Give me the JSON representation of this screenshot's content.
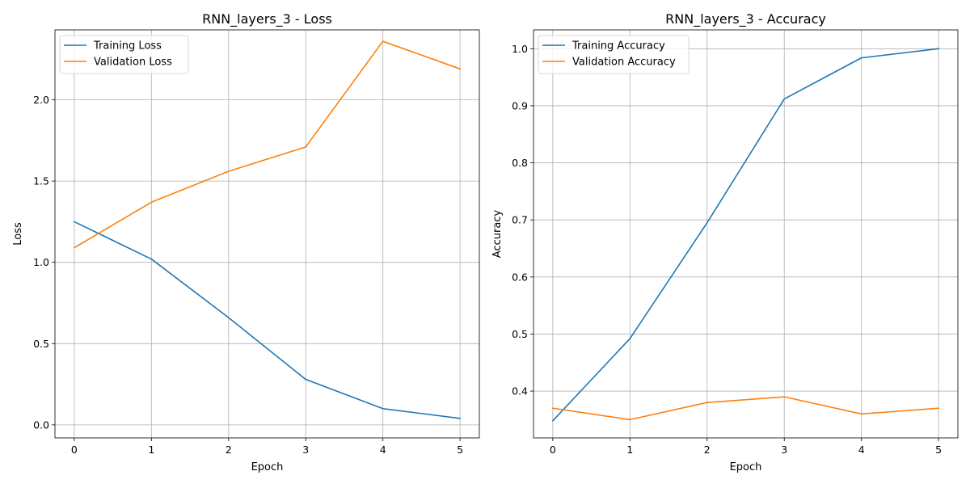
{
  "chart_data": [
    {
      "type": "line",
      "title": "RNN_layers_3 - Loss",
      "xlabel": "Epoch",
      "ylabel": "Loss",
      "x": [
        0,
        1,
        2,
        3,
        4,
        5
      ],
      "xticks": [
        0,
        1,
        2,
        3,
        4,
        5
      ],
      "yticks": [
        0.0,
        0.5,
        1.0,
        1.5,
        2.0
      ],
      "ytick_labels": [
        "0.0",
        "0.5",
        "1.0",
        "1.5",
        "2.0"
      ],
      "xlim": [
        -0.25,
        5.25
      ],
      "ylim": [
        -0.08,
        2.43
      ],
      "grid": true,
      "legend_position": "upper-left",
      "series": [
        {
          "name": "Training Loss",
          "color": "#1f77b4",
          "values": [
            1.25,
            1.02,
            0.66,
            0.28,
            0.1,
            0.04
          ]
        },
        {
          "name": "Validation Loss",
          "color": "#ff7f0e",
          "values": [
            1.09,
            1.37,
            1.56,
            1.71,
            2.36,
            2.19
          ]
        }
      ]
    },
    {
      "type": "line",
      "title": "RNN_layers_3 - Accuracy",
      "xlabel": "Epoch",
      "ylabel": "Accuracy",
      "x": [
        0,
        1,
        2,
        3,
        4,
        5
      ],
      "xticks": [
        0,
        1,
        2,
        3,
        4,
        5
      ],
      "yticks": [
        0.4,
        0.5,
        0.6,
        0.7,
        0.8,
        0.9,
        1.0
      ],
      "ytick_labels": [
        "0.4",
        "0.5",
        "0.6",
        "0.7",
        "0.8",
        "0.9",
        "1.0"
      ],
      "xlim": [
        -0.25,
        5.25
      ],
      "ylim": [
        0.318,
        1.033
      ],
      "grid": true,
      "legend_position": "upper-left",
      "series": [
        {
          "name": "Training Accuracy",
          "color": "#1f77b4",
          "values": [
            0.348,
            0.492,
            0.695,
            0.912,
            0.984,
            1.0
          ]
        },
        {
          "name": "Validation Accuracy",
          "color": "#ff7f0e",
          "values": [
            0.37,
            0.35,
            0.38,
            0.39,
            0.36,
            0.37
          ]
        }
      ]
    }
  ]
}
